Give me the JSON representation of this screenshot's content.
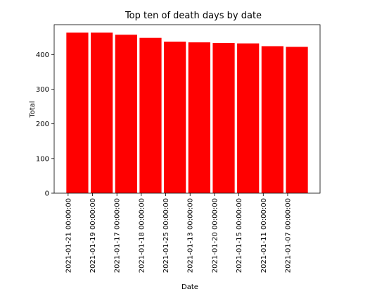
{
  "chart_data": {
    "type": "bar",
    "title": "Top ten of death days by date",
    "xlabel": "Date",
    "ylabel": "Total",
    "categories": [
      "2021-01-21 00:00:00",
      "2021-01-19 00:00:00",
      "2021-01-17 00:00:00",
      "2021-01-18 00:00:00",
      "2021-01-25 00:00:00",
      "2021-01-13 00:00:00",
      "2021-01-20 00:00:00",
      "2021-01-15 00:00:00",
      "2021-01-11 00:00:00",
      "2021-01-07 00:00:00"
    ],
    "values": [
      463,
      463,
      457,
      448,
      437,
      435,
      433,
      432,
      424,
      422
    ],
    "ylim": [
      0,
      486
    ],
    "yticks": [
      0,
      100,
      200,
      300,
      400
    ],
    "bar_color": "#ff0000",
    "grid": false,
    "legend": "none"
  }
}
